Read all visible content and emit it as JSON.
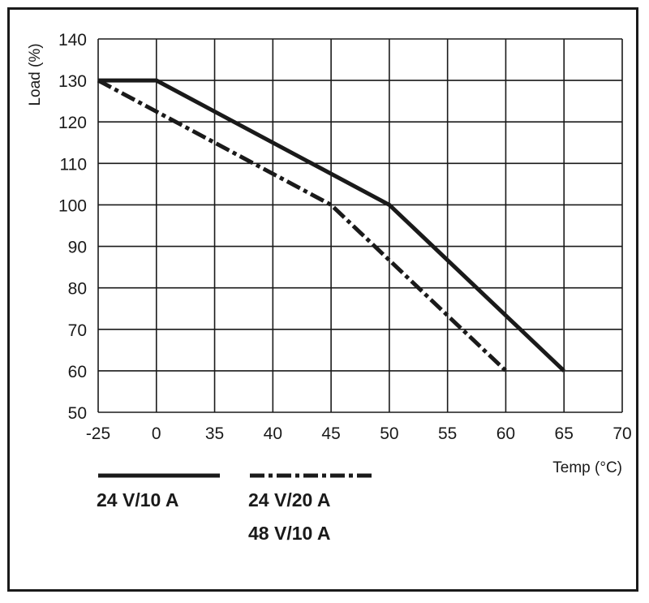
{
  "chart_data": {
    "type": "line",
    "title": "",
    "xlabel": "Temp (°C)",
    "ylabel": "Load (%)",
    "categories": [
      "-25",
      "0",
      "35",
      "40",
      "45",
      "50",
      "55",
      "60",
      "65",
      "70"
    ],
    "yticks": [
      50,
      60,
      70,
      80,
      90,
      100,
      110,
      120,
      130,
      140
    ],
    "ylim": [
      50,
      140
    ],
    "grid": true,
    "series": [
      {
        "name": "24 V/10 A",
        "style": "solid",
        "points": [
          [
            "-25",
            130
          ],
          [
            "0",
            130
          ],
          [
            "50",
            100
          ],
          [
            "65",
            60
          ]
        ]
      },
      {
        "name": "24 V/20 A\n48 V/10 A",
        "style": "dash-dot",
        "points": [
          [
            "-25",
            130
          ],
          [
            "45",
            100
          ],
          [
            "60",
            60
          ]
        ]
      }
    ],
    "legend": [
      {
        "style": "solid",
        "lines": [
          "24 V/10 A"
        ]
      },
      {
        "style": "dash-dot",
        "lines": [
          "24 V/20 A",
          "48 V/10 A"
        ]
      }
    ],
    "colors": {
      "line": "#1a1a1a",
      "grid": "#1a1a1a"
    }
  }
}
